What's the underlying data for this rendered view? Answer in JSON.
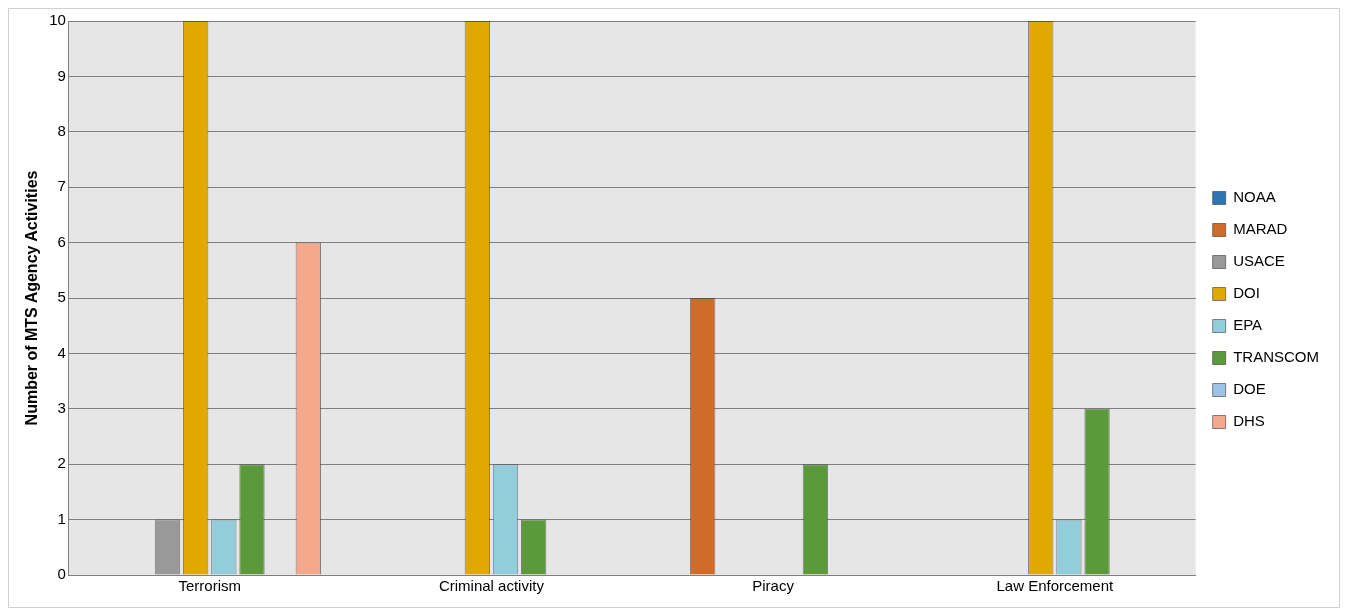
{
  "chart_data": {
    "type": "bar",
    "ylabel": "Number of MTS Agency Activities",
    "categories": [
      "Terrorism",
      "Criminal activity",
      "Piracy",
      "Law Enforcement"
    ],
    "series": [
      {
        "name": "NOAA",
        "color": "#2e75b6",
        "values": [
          0,
          0,
          0,
          0
        ]
      },
      {
        "name": "MARAD",
        "color": "#d06b2a",
        "values": [
          0,
          0,
          5,
          0
        ]
      },
      {
        "name": "USACE",
        "color": "#999999",
        "values": [
          1,
          0,
          0,
          0
        ]
      },
      {
        "name": "DOI",
        "color": "#e0a800",
        "values": [
          10,
          10,
          0,
          10
        ]
      },
      {
        "name": "EPA",
        "color": "#92cddc",
        "values": [
          1,
          2,
          0,
          1
        ]
      },
      {
        "name": "TRANSCOM",
        "color": "#5b9a3a",
        "values": [
          2,
          1,
          2,
          3
        ]
      },
      {
        "name": "DOE",
        "color": "#9dc3e6",
        "values": [
          0,
          0,
          0,
          0
        ]
      },
      {
        "name": "DHS",
        "color": "#f4a98c",
        "values": [
          6,
          0,
          0,
          0
        ]
      }
    ],
    "ylim": [
      0,
      10
    ],
    "yticks": [
      0,
      1,
      2,
      3,
      4,
      5,
      6,
      7,
      8,
      9,
      10
    ],
    "grid": "y",
    "legend": "right"
  }
}
